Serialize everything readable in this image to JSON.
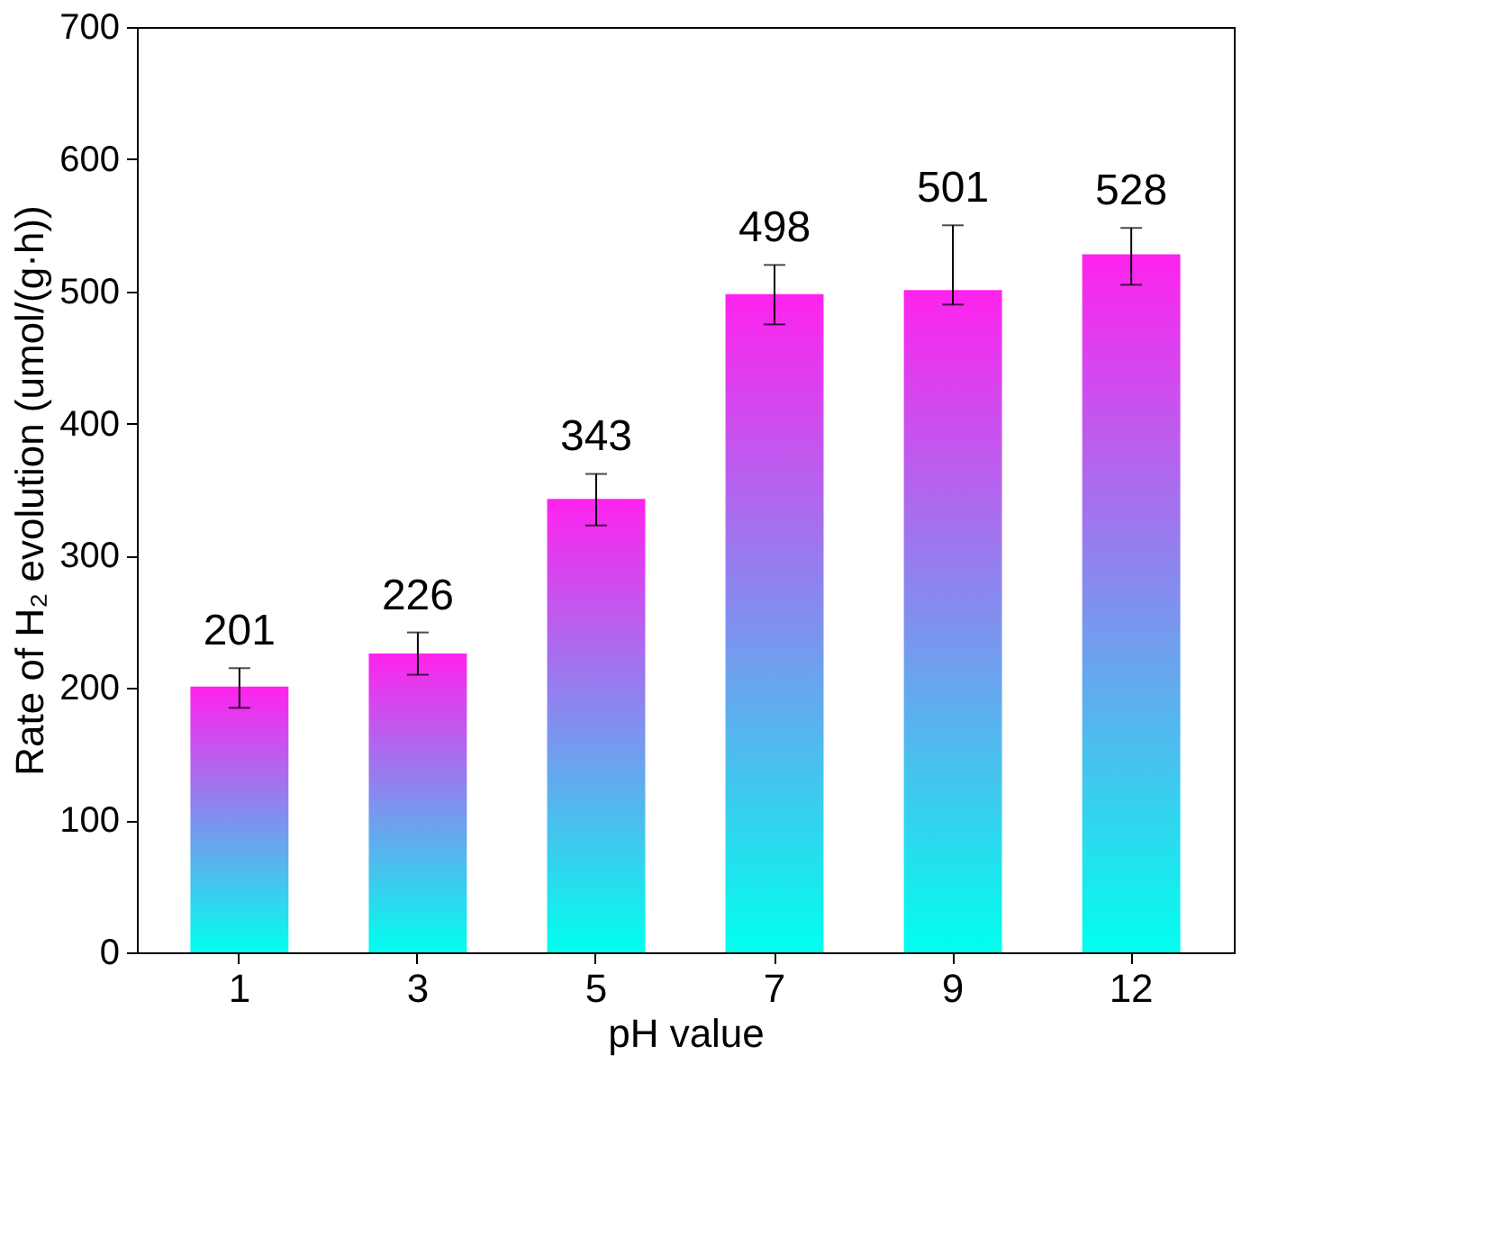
{
  "chart_data": {
    "type": "bar",
    "xlabel": "pH value",
    "ylabel": "Rate of H₂ evolution (umol/(g·h))",
    "categories": [
      "1",
      "3",
      "5",
      "7",
      "9",
      "12"
    ],
    "values": [
      201,
      226,
      343,
      498,
      501,
      528
    ],
    "color": "#ff22ee",
    "errors": [
      [
        185,
        215
      ],
      [
        210,
        242
      ],
      [
        323,
        362
      ],
      [
        475,
        520
      ],
      [
        490,
        550
      ],
      [
        505,
        548
      ]
    ],
    "ylim": [
      0,
      700
    ],
    "yticks": [
      0,
      100,
      200,
      300,
      400,
      500,
      600,
      700
    ],
    "data_labels": true,
    "grid": false
  }
}
